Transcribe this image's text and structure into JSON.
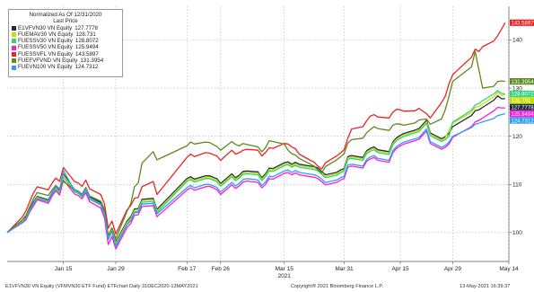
{
  "legend": {
    "title": "Normalized As Of 12/31/2020",
    "subtitle": "Last Price",
    "items": [
      {
        "label": "E1VFVN30 VN Equity",
        "value": "127.7778",
        "color": "#1f2a44"
      },
      {
        "label": "FUEMAV30 VN Equity",
        "value": "128.731",
        "color": "#c8e000"
      },
      {
        "label": "FUESSV30 VN Equity",
        "value": "128.8072",
        "color": "#33d17a"
      },
      {
        "label": "FUESSV50 VN Equity",
        "value": "125.9494",
        "color": "#ff19d9"
      },
      {
        "label": "FUESSVFL VN Equity",
        "value": "143.5897",
        "color": "#ee2222"
      },
      {
        "label": "FUEFVFVND VN Equity",
        "value": "131.3954",
        "color": "#5c8a1e"
      },
      {
        "label": "FUEVN100 VN Equity",
        "value": "124.7312",
        "color": "#2f9bff"
      }
    ]
  },
  "footer": {
    "left": "E1VFVN30 VN Equity (VFMVN30 ETF Fund) ETFchart  Daily 31DEC2020-13MAY2021",
    "center": "Copyright® 2021 Bloomberg Finance L.P.",
    "right": "13-May-2021 16:39:37"
  },
  "chart_data": {
    "type": "line",
    "x_tick_labels": [
      "Jan 15",
      "Jan 29",
      "Feb 17",
      "Feb 26",
      "Mar 15",
      "Mar 31",
      "Apr 15",
      "Apr 29",
      "May 14"
    ],
    "x_sublabel": "2021",
    "y_tick_labels": [
      "100",
      "110",
      "120",
      "130",
      "140"
    ],
    "ylim": [
      94,
      147
    ],
    "grid": true,
    "legend_position": "top-left",
    "x": [
      "2020-12-31",
      "2021-01-04",
      "2021-01-05",
      "2021-01-06",
      "2021-01-07",
      "2021-01-08",
      "2021-01-11",
      "2021-01-12",
      "2021-01-13",
      "2021-01-14",
      "2021-01-15",
      "2021-01-18",
      "2021-01-19",
      "2021-01-20",
      "2021-01-21",
      "2021-01-22",
      "2021-01-25",
      "2021-01-26",
      "2021-01-27",
      "2021-01-28",
      "2021-01-29",
      "2021-02-01",
      "2021-02-02",
      "2021-02-03",
      "2021-02-04",
      "2021-02-05",
      "2021-02-08",
      "2021-02-09",
      "2021-02-17",
      "2021-02-18",
      "2021-02-19",
      "2021-02-22",
      "2021-02-23",
      "2021-02-24",
      "2021-02-25",
      "2021-02-26",
      "2021-03-01",
      "2021-03-02",
      "2021-03-03",
      "2021-03-04",
      "2021-03-05",
      "2021-03-08",
      "2021-03-09",
      "2021-03-10",
      "2021-03-11",
      "2021-03-12",
      "2021-03-15",
      "2021-03-16",
      "2021-03-17",
      "2021-03-18",
      "2021-03-19",
      "2021-03-22",
      "2021-03-23",
      "2021-03-24",
      "2021-03-25",
      "2021-03-26",
      "2021-03-29",
      "2021-03-30",
      "2021-03-31",
      "2021-04-01",
      "2021-04-02",
      "2021-04-05",
      "2021-04-06",
      "2021-04-07",
      "2021-04-08",
      "2021-04-09",
      "2021-04-12",
      "2021-04-13",
      "2021-04-14",
      "2021-04-15",
      "2021-04-16",
      "2021-04-19",
      "2021-04-20",
      "2021-04-22",
      "2021-04-23",
      "2021-04-26",
      "2021-04-27",
      "2021-04-28",
      "2021-04-29",
      "2021-05-04",
      "2021-05-05",
      "2021-05-06",
      "2021-05-07",
      "2021-05-10",
      "2021-05-11",
      "2021-05-12",
      "2021-05-13"
    ],
    "series": [
      {
        "name": "E1VFVN30 VN Equity",
        "color": "#1f2a44",
        "values": [
          100,
          102.5,
          103.2,
          104.8,
          106.3,
          107.5,
          106.8,
          108.3,
          109.5,
          108.7,
          112.2,
          108.9,
          108.6,
          107.9,
          109.3,
          107.5,
          106.2,
          104.2,
          99.1,
          100.8,
          98.0,
          102.4,
          103.3,
          104.9,
          105.0,
          106.9,
          107.1,
          104.8,
          111.2,
          111.6,
          111.1,
          111.8,
          111.8,
          111.5,
          111.2,
          110.2,
          112.2,
          111.4,
          111.9,
          112.7,
          112.8,
          112.6,
          111.4,
          112.2,
          113.4,
          113.3,
          114.5,
          114.7,
          114.2,
          114.6,
          114.2,
          113.8,
          113.7,
          113.4,
          112.7,
          112.0,
          112.5,
          113.0,
          113.3,
          115.8,
          116.0,
          115.6,
          117.0,
          117.5,
          117.8,
          117.2,
          116.8,
          118.8,
          119.7,
          120.2,
          120.6,
          121.3,
          121.6,
          123.3,
          120.7,
          119.5,
          119.9,
          120.6,
          122.0,
          124.3,
          125.3,
          125.5,
          126.0,
          127.5,
          128.4,
          127.8,
          127.8
        ]
      },
      {
        "name": "FUEMAV30 VN Equity",
        "color": "#c8e000",
        "values": [
          100,
          102.4,
          103.0,
          104.6,
          106.0,
          107.3,
          106.6,
          108.1,
          109.2,
          108.4,
          111.9,
          108.7,
          108.3,
          107.6,
          109.0,
          107.2,
          105.9,
          103.9,
          98.8,
          100.5,
          97.7,
          102.1,
          103.0,
          104.6,
          104.7,
          106.6,
          106.8,
          104.5,
          110.9,
          111.3,
          110.8,
          111.5,
          111.5,
          111.2,
          110.9,
          109.9,
          111.9,
          111.1,
          111.6,
          112.4,
          112.5,
          112.3,
          111.1,
          111.9,
          113.1,
          113.0,
          114.2,
          114.4,
          113.9,
          114.3,
          113.9,
          113.5,
          113.4,
          113.1,
          112.4,
          111.7,
          112.2,
          112.7,
          113.0,
          115.5,
          115.7,
          115.3,
          116.7,
          117.2,
          117.5,
          116.9,
          116.5,
          118.5,
          119.4,
          119.9,
          120.3,
          121.0,
          121.3,
          123.0,
          120.4,
          119.2,
          119.6,
          121.3,
          122.7,
          125.0,
          126.0,
          126.2,
          126.7,
          128.2,
          129.1,
          128.5,
          128.7
        ]
      },
      {
        "name": "FUESSV30 VN Equity",
        "color": "#33d17a",
        "values": [
          100,
          102.2,
          102.8,
          104.3,
          105.8,
          107.0,
          106.4,
          107.9,
          109.0,
          108.2,
          111.6,
          108.4,
          108.1,
          107.4,
          108.7,
          106.9,
          105.7,
          103.7,
          98.6,
          100.3,
          97.4,
          101.8,
          102.7,
          104.3,
          104.4,
          106.3,
          106.5,
          104.2,
          110.6,
          111.0,
          110.5,
          111.2,
          111.2,
          110.9,
          110.6,
          109.6,
          111.6,
          110.8,
          111.3,
          112.1,
          112.2,
          112.0,
          110.8,
          111.6,
          112.8,
          112.7,
          113.9,
          114.1,
          113.6,
          114.0,
          113.6,
          113.2,
          113.1,
          112.8,
          112.1,
          111.4,
          111.9,
          112.4,
          112.7,
          115.2,
          115.4,
          115.0,
          116.4,
          116.9,
          117.2,
          116.6,
          116.2,
          118.2,
          119.1,
          119.6,
          120.0,
          120.7,
          121.0,
          122.7,
          120.1,
          118.9,
          119.3,
          120.0,
          122.9,
          125.4,
          126.5,
          126.8,
          127.4,
          128.8,
          129.5,
          128.9,
          128.8
        ]
      },
      {
        "name": "FUESSV50 VN Equity",
        "color": "#ff19d9",
        "values": [
          100,
          102.0,
          102.6,
          104.2,
          105.5,
          106.8,
          106.1,
          107.6,
          108.7,
          107.8,
          110.9,
          108.0,
          107.7,
          107.0,
          108.3,
          106.4,
          105.1,
          103.0,
          97.5,
          99.2,
          96.6,
          101.0,
          101.9,
          103.6,
          103.7,
          105.4,
          105.6,
          103.3,
          108.8,
          109.3,
          108.8,
          109.5,
          109.6,
          109.3,
          108.9,
          107.9,
          109.9,
          109.2,
          109.7,
          110.5,
          110.7,
          110.4,
          109.3,
          110.0,
          111.2,
          111.1,
          112.3,
          112.5,
          112.0,
          112.4,
          112.0,
          111.6,
          111.5,
          111.2,
          110.6,
          109.9,
          110.4,
          110.9,
          111.2,
          113.6,
          113.8,
          113.4,
          114.8,
          115.3,
          115.6,
          115.0,
          114.6,
          116.6,
          117.5,
          118.0,
          118.4,
          119.1,
          119.4,
          121.1,
          118.5,
          117.3,
          117.7,
          118.4,
          119.8,
          122.0,
          123.0,
          123.3,
          123.8,
          125.3,
          126.0,
          125.9,
          125.9
        ]
      },
      {
        "name": "FUESSVFL VN Equity",
        "color": "#ee2222",
        "values": [
          100,
          103.2,
          104.5,
          106.4,
          108.2,
          109.5,
          108.9,
          110.3,
          111.3,
          110.6,
          113.5,
          110.6,
          110.3,
          109.6,
          110.9,
          109.1,
          107.9,
          105.9,
          100.9,
          102.4,
          99.7,
          104.7,
          105.6,
          107.1,
          107.3,
          109.5,
          110.6,
          107.9,
          115.6,
          116.3,
          115.8,
          116.6,
          116.5,
          116.2,
          115.9,
          115.0,
          117.1,
          116.3,
          116.6,
          117.1,
          117.3,
          117.1,
          115.9,
          116.6,
          117.6,
          117.5,
          118.5,
          118.4,
          117.8,
          117.4,
          116.3,
          115.0,
          114.6,
          113.8,
          113.2,
          114.5,
          115.9,
          116.5,
          117.2,
          119.6,
          121.5,
          122.0,
          123.2,
          124.2,
          124.5,
          124.0,
          123.8,
          125.0,
          125.6,
          125.5,
          125.2,
          125.3,
          125.8,
          124.7,
          123.8,
          127.0,
          128.3,
          130.9,
          132.8,
          136.4,
          138.1,
          137.6,
          138.6,
          139.8,
          140.9,
          142.2,
          143.6
        ]
      },
      {
        "name": "FUEFVFVND VN Equity",
        "color": "#5c8a1e",
        "values": [
          100,
          102.6,
          103.6,
          105.3,
          107.0,
          108.3,
          107.7,
          108.9,
          109.8,
          109.1,
          110.6,
          108.9,
          108.6,
          107.9,
          109.4,
          107.6,
          106.5,
          104.8,
          99.4,
          101.0,
          98.7,
          104.4,
          106.0,
          109.5,
          110.3,
          114.4,
          116.8,
          115.1,
          118.0,
          118.8,
          118.4,
          118.8,
          118.7,
          118.3,
          117.9,
          117.1,
          118.9,
          118.3,
          118.0,
          118.5,
          118.3,
          117.8,
          116.8,
          117.6,
          119.1,
          118.9,
          118.4,
          117.1,
          116.4,
          116.1,
          115.4,
          114.2,
          113.8,
          113.0,
          112.4,
          113.7,
          115.1,
          115.7,
          116.4,
          118.6,
          119.3,
          119.6,
          120.7,
          121.4,
          122.0,
          121.6,
          121.2,
          122.3,
          122.6,
          122.5,
          122.3,
          122.8,
          123.4,
          123.6,
          122.5,
          123.6,
          125.5,
          128.3,
          131.4,
          134.4,
          137.6,
          133.8,
          130.0,
          130.4,
          131.4,
          131.5,
          131.4
        ]
      },
      {
        "name": "FUEVN100 VN Equity",
        "color": "#2f9bff",
        "values": [
          100,
          102.1,
          102.9,
          104.4,
          105.9,
          107.1,
          106.5,
          108.1,
          109.6,
          108.9,
          112.9,
          108.7,
          108.4,
          107.7,
          109.1,
          107.2,
          105.9,
          103.9,
          98.5,
          100.2,
          97.1,
          101.6,
          102.5,
          104.1,
          104.2,
          105.9,
          106.1,
          103.9,
          109.3,
          109.8,
          109.3,
          110.0,
          110.0,
          109.7,
          109.4,
          108.4,
          110.4,
          109.7,
          110.2,
          111.0,
          111.2,
          110.9,
          109.8,
          110.5,
          111.7,
          111.6,
          112.8,
          113.0,
          112.5,
          112.9,
          112.5,
          112.1,
          112.0,
          111.7,
          111.1,
          110.4,
          110.9,
          111.4,
          111.7,
          114.0,
          114.2,
          113.8,
          115.2,
          115.7,
          116.0,
          115.4,
          115.0,
          117.0,
          117.9,
          118.4,
          118.8,
          119.5,
          119.8,
          121.5,
          118.9,
          117.7,
          118.1,
          118.8,
          120.0,
          121.8,
          122.5,
          122.7,
          123.0,
          123.7,
          124.3,
          124.5,
          124.7
        ]
      }
    ]
  }
}
